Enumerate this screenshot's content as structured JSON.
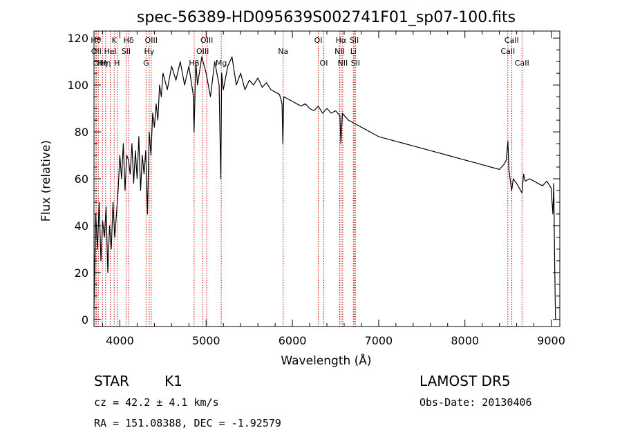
{
  "chart_data": {
    "type": "line",
    "title": "spec-56389-HD095639S002741F01_sp07-100.fits",
    "xlabel": "Wavelength (Å)",
    "ylabel": "Flux (relative)",
    "xlim": [
      3700,
      9100
    ],
    "ylim": [
      -3,
      123
    ],
    "xticks": [
      4000,
      5000,
      6000,
      7000,
      8000,
      9000
    ],
    "yticks": [
      0,
      20,
      40,
      60,
      80,
      100,
      120
    ],
    "grid": false,
    "line_color": "#000000",
    "marker_color": "#cc0000",
    "series": [
      {
        "x": [
          3700,
          3720,
          3740,
          3760,
          3780,
          3800,
          3820,
          3840,
          3860,
          3880,
          3900,
          3920,
          3940,
          3960,
          3980,
          4000,
          4020,
          4040,
          4060,
          4080,
          4100,
          4120,
          4140,
          4160,
          4180,
          4200,
          4220,
          4240,
          4260,
          4280,
          4300,
          4320,
          4340,
          4360,
          4380,
          4400,
          4420,
          4440,
          4460,
          4480,
          4500,
          4550,
          4600,
          4650,
          4700,
          4750,
          4800,
          4850,
          4860,
          4880,
          4900,
          4950,
          5000,
          5050,
          5100,
          5150,
          5170,
          5180,
          5200,
          5250,
          5300,
          5350,
          5400,
          5450,
          5500,
          5550,
          5600,
          5650,
          5700,
          5750,
          5800,
          5850,
          5880,
          5890,
          5900,
          5950,
          6000,
          6050,
          6100,
          6150,
          6200,
          6250,
          6300,
          6350,
          6400,
          6450,
          6500,
          6550,
          6563,
          6580,
          6600,
          6650,
          6700,
          6750,
          6800,
          6850,
          6900,
          6950,
          7000,
          7100,
          7200,
          7300,
          7400,
          7500,
          7600,
          7700,
          7800,
          7900,
          8000,
          8100,
          8200,
          8300,
          8400,
          8450,
          8480,
          8498,
          8510,
          8530,
          8542,
          8560,
          8600,
          8662,
          8680,
          8700,
          8750,
          8800,
          8850,
          8900,
          8950,
          9000,
          9010,
          9020,
          9030,
          9040,
          9050
        ],
        "y": [
          5,
          45,
          30,
          50,
          25,
          42,
          35,
          48,
          20,
          40,
          30,
          50,
          35,
          45,
          55,
          70,
          60,
          75,
          55,
          70,
          68,
          62,
          75,
          58,
          72,
          60,
          78,
          55,
          70,
          62,
          72,
          45,
          80,
          70,
          88,
          82,
          92,
          85,
          100,
          95,
          105,
          98,
          108,
          102,
          110,
          100,
          108,
          96,
          80,
          110,
          100,
          112,
          105,
          95,
          110,
          100,
          60,
          105,
          98,
          108,
          112,
          100,
          105,
          98,
          102,
          100,
          103,
          99,
          101,
          98,
          97,
          96,
          92,
          75,
          95,
          94,
          93,
          92,
          91,
          92,
          90,
          89,
          91,
          88,
          90,
          88,
          89,
          87,
          75,
          88,
          87,
          85,
          84,
          83,
          82,
          81,
          80,
          79,
          78,
          77,
          76,
          75,
          74,
          73,
          72,
          71,
          70,
          69,
          68,
          67,
          66,
          65,
          64,
          66,
          68,
          76,
          64,
          58,
          55,
          60,
          58,
          54,
          62,
          59,
          60,
          59,
          58,
          57,
          59,
          56,
          50,
          45,
          58,
          25,
          0
        ]
      }
    ],
    "line_markers": [
      {
        "x": 3722,
        "label": "Hθ",
        "row": 1
      },
      {
        "x": 3727,
        "label": "OII",
        "row": 2
      },
      {
        "x": 3750,
        "label": "OII",
        "row": 3
      },
      {
        "x": 3798,
        "label": "Hη",
        "row": 3
      },
      {
        "x": 3835,
        "label": "Hη",
        "row": 3
      },
      {
        "x": 3889,
        "label": "HeI",
        "row": 2
      },
      {
        "x": 3934,
        "label": "K",
        "row": 1
      },
      {
        "x": 3968,
        "label": "H",
        "row": 3
      },
      {
        "x": 4072,
        "label": "SII",
        "row": 2
      },
      {
        "x": 4102,
        "label": "Hδ",
        "row": 1
      },
      {
        "x": 4304,
        "label": "G",
        "row": 3
      },
      {
        "x": 4340,
        "label": "Hγ",
        "row": 2
      },
      {
        "x": 4363,
        "label": "OIII",
        "row": 1
      },
      {
        "x": 4861,
        "label": "Hβ",
        "row": 3
      },
      {
        "x": 4959,
        "label": "OIII",
        "row": 2
      },
      {
        "x": 5007,
        "label": "OIII",
        "row": 1
      },
      {
        "x": 5175,
        "label": "Mg",
        "row": 3
      },
      {
        "x": 5893,
        "label": "Na",
        "row": 2
      },
      {
        "x": 6300,
        "label": "OI",
        "row": 1
      },
      {
        "x": 6364,
        "label": "OI",
        "row": 3
      },
      {
        "x": 6548,
        "label": "NII",
        "row": 2
      },
      {
        "x": 6563,
        "label": "Hα",
        "row": 1
      },
      {
        "x": 6583,
        "label": "NII",
        "row": 3
      },
      {
        "x": 6707,
        "label": "Li",
        "row": 2
      },
      {
        "x": 6717,
        "label": "SII",
        "row": 1
      },
      {
        "x": 6731,
        "label": "SII",
        "row": 3
      },
      {
        "x": 8498,
        "label": "CaII",
        "row": 2
      },
      {
        "x": 8542,
        "label": "CaII",
        "row": 1
      },
      {
        "x": 8662,
        "label": "CaII",
        "row": 3
      }
    ]
  },
  "info": {
    "object_class": "STAR",
    "subclass": "K1",
    "redshift_line": "cz = 42.2 ± 4.1 km/s",
    "coords_line": "RA = 151.08388, DEC =  -1.92579",
    "survey": "LAMOST DR5",
    "obs_date": "Obs-Date: 20130406"
  }
}
